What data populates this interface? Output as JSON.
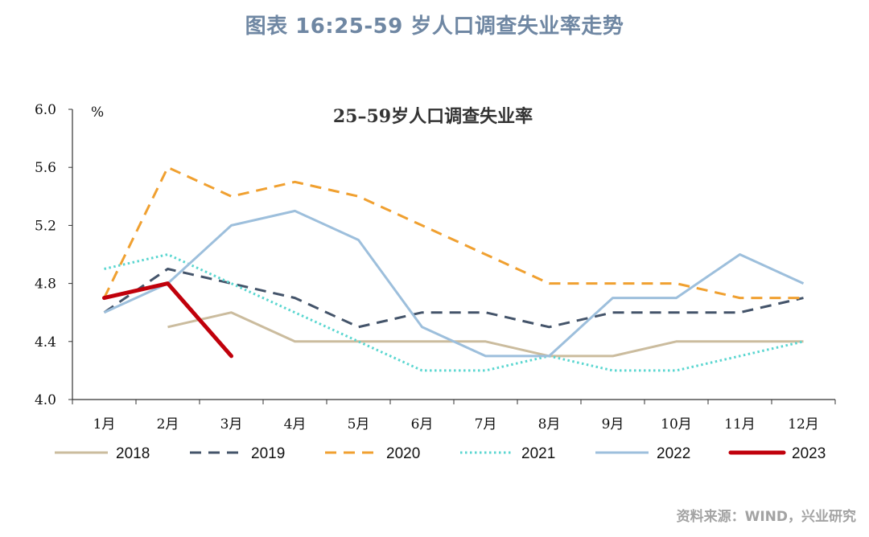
{
  "page": {
    "figure_title": "图表 16:25-59 岁人口调查失业率走势",
    "source": "资料来源：WIND，兴业研究"
  },
  "chart_data": {
    "type": "line",
    "title": "25–59岁人口调查失业率",
    "ylabel": "%",
    "xlabel": "",
    "ylim": [
      4.0,
      6.0
    ],
    "yticks": [
      "4.0",
      "4.4",
      "4.8",
      "5.2",
      "5.6",
      "6.0"
    ],
    "categories": [
      "1月",
      "2月",
      "3月",
      "4月",
      "5月",
      "6月",
      "7月",
      "8月",
      "9月",
      "10月",
      "11月",
      "12月"
    ],
    "legend_position": "bottom",
    "grid": false,
    "series": [
      {
        "name": "2018",
        "color": "#cbbc9e",
        "style": "solid",
        "values": [
          null,
          4.5,
          4.6,
          4.4,
          4.4,
          4.4,
          4.4,
          4.3,
          4.3,
          4.4,
          4.4,
          4.4
        ]
      },
      {
        "name": "2019",
        "color": "#44546a",
        "style": "dashed",
        "values": [
          4.6,
          4.9,
          4.8,
          4.7,
          4.5,
          4.6,
          4.6,
          4.5,
          4.6,
          4.6,
          4.6,
          4.7
        ]
      },
      {
        "name": "2020",
        "color": "#f0a030",
        "style": "dashed",
        "values": [
          4.7,
          5.6,
          5.4,
          5.5,
          5.4,
          5.2,
          5.0,
          4.8,
          4.8,
          4.8,
          4.7,
          4.7
        ]
      },
      {
        "name": "2021",
        "color": "#5ad6d0",
        "style": "dotted",
        "values": [
          4.9,
          5.0,
          4.8,
          4.6,
          4.4,
          4.2,
          4.2,
          4.3,
          4.2,
          4.2,
          4.3,
          4.4
        ]
      },
      {
        "name": "2022",
        "color": "#9dbfdc",
        "style": "solid",
        "values": [
          4.6,
          4.8,
          5.2,
          5.3,
          5.1,
          4.5,
          4.3,
          4.3,
          4.7,
          4.7,
          5.0,
          4.8
        ]
      },
      {
        "name": "2023",
        "color": "#c0000b",
        "style": "solid-thick",
        "values": [
          4.7,
          4.8,
          4.3,
          null,
          null,
          null,
          null,
          null,
          null,
          null,
          null,
          null
        ]
      }
    ]
  }
}
